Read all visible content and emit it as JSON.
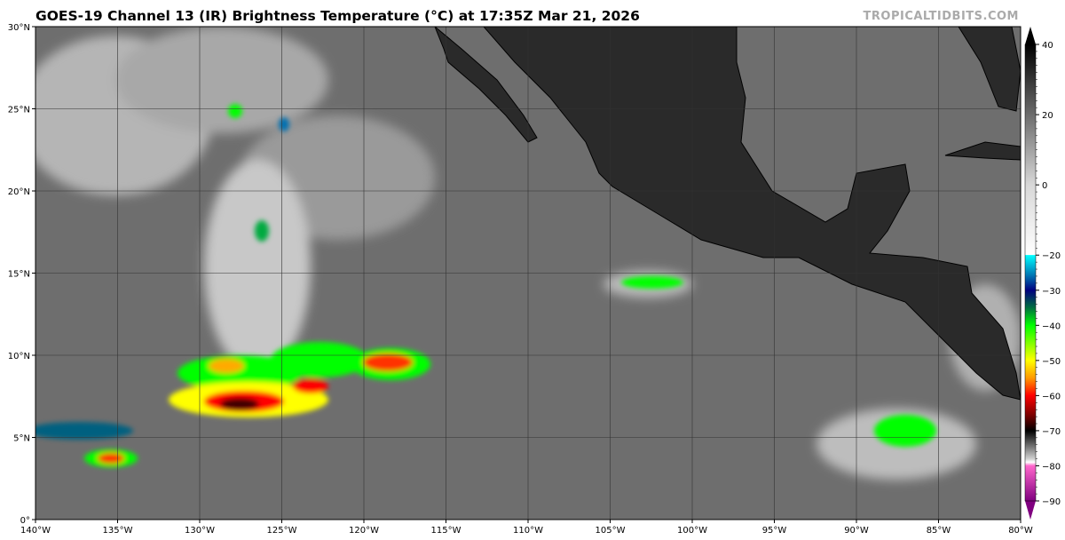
{
  "header": {
    "title": "GOES-19 Channel 13 (IR) Brightness Temperature (°C) at 17:35Z Mar 21, 2026",
    "brand": "TROPICALTIDBITS.COM"
  },
  "map": {
    "lon_labels": [
      "140°W",
      "135°W",
      "130°W",
      "125°W",
      "120°W",
      "115°W",
      "110°W",
      "105°W",
      "100°W",
      "95°W",
      "90°W",
      "85°W",
      "80°W"
    ],
    "lat_labels": [
      "0°",
      "5°N",
      "10°N",
      "15°N",
      "20°N",
      "25°N",
      "30°N"
    ],
    "extent": {
      "lon": [
        -140,
        -80
      ],
      "lat": [
        0,
        30
      ]
    },
    "ocean_color": "#6e6e6e",
    "land_color": "#2a2a2a"
  },
  "colorbar": {
    "range": [
      -90,
      40
    ],
    "tick_labels": [
      "40",
      "20",
      "0",
      "−20",
      "−30",
      "−40",
      "−50",
      "−60",
      "−70",
      "−80",
      "−90"
    ],
    "tick_values": [
      40,
      20,
      0,
      -20,
      -30,
      -40,
      -50,
      -60,
      -70,
      -80,
      -90
    ],
    "stops": [
      {
        "v": 40,
        "c": "#000000"
      },
      {
        "v": 0,
        "c": "#d8d8d8"
      },
      {
        "v": -20,
        "c": "#ffffff"
      },
      {
        "v": -20.01,
        "c": "#00ffff"
      },
      {
        "v": -26,
        "c": "#0070b0"
      },
      {
        "v": -30,
        "c": "#000080"
      },
      {
        "v": -35,
        "c": "#007040"
      },
      {
        "v": -40,
        "c": "#00ff00"
      },
      {
        "v": -50,
        "c": "#ffff00"
      },
      {
        "v": -55,
        "c": "#ff9900"
      },
      {
        "v": -60,
        "c": "#ff0000"
      },
      {
        "v": -66,
        "c": "#700000"
      },
      {
        "v": -70,
        "c": "#000000"
      },
      {
        "v": -78,
        "c": "#d0d0d0"
      },
      {
        "v": -79,
        "c": "#ffffff"
      },
      {
        "v": -80,
        "c": "#ff66cc"
      },
      {
        "v": -90,
        "c": "#800080"
      }
    ]
  }
}
